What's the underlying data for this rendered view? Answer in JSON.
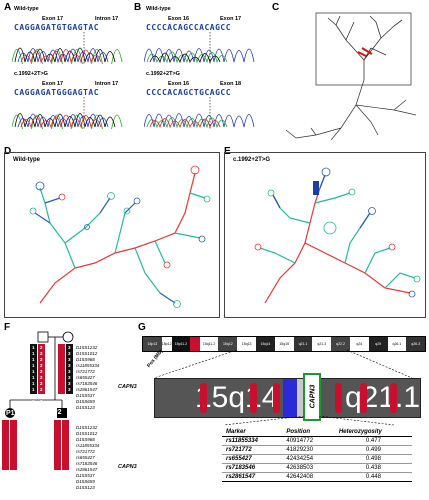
{
  "panels": {
    "a": "A",
    "b": "B",
    "c": "C",
    "d": "D",
    "e": "E",
    "f": "F",
    "g": "G"
  },
  "panel_a": {
    "wt_label": "Wild-type",
    "wt_exon": "Exon 17",
    "wt_intron": "Intron 17",
    "wt_seq": "CAGGAGATGTGAGTAC",
    "mut_label": "c.1992+2T>G",
    "mut_exon": "Exon 17",
    "mut_intron": "Intron 17",
    "mut_seq": "CAGGAGATGGGAGTAC"
  },
  "panel_b": {
    "wt_label": "Wild-type",
    "wt_left": "Exon 16",
    "wt_right": "Exon 17",
    "wt_seq": "CCCCACAGCCACAGCC",
    "mut_label": "c.1992+2T>G",
    "mut_left": "Exon 16",
    "mut_right": "Exon 18",
    "mut_seq": "CCCCACAGCTGCAGCC"
  },
  "panel_d": {
    "label": "Wild-type"
  },
  "panel_e": {
    "label": "c.1992+2T>G"
  },
  "panel_f": {
    "p1": "P1",
    "p2": "P2",
    "markers": [
      "D15S1232",
      "D15S1012",
      "D15S968",
      "rs11855334",
      "rs721772",
      "rs655427",
      "rs7183546",
      "rs2861547",
      "D15S537",
      "D15S659",
      "D15S123"
    ],
    "capn3": "CAPN3",
    "hap_left": [
      "1",
      "1",
      "1",
      "1",
      "1",
      "1",
      "1",
      "1",
      "1",
      "1",
      "1"
    ],
    "hap_mid": [
      "2",
      "2",
      "2",
      "2",
      "2",
      "2",
      "2",
      "2",
      "2",
      "2",
      "2"
    ],
    "hap_right": [
      "3",
      "3",
      "3",
      "3",
      "3",
      "3",
      "3",
      "3",
      "3",
      "3",
      "3"
    ]
  },
  "panel_g": {
    "pos_label": "Pos (Mb)",
    "band_left": "15q14",
    "band_right": "q21.1",
    "gene": "CAPN3",
    "ideo_bands": [
      "15p13",
      "15p12",
      "15p11.2",
      "15q11.2",
      "15q12",
      "15q13",
      "15q14",
      "15q15",
      "q21.1",
      "q21.3",
      "q22.2",
      "q24",
      "q25",
      "q26.1",
      "q26.3"
    ],
    "table_headers": [
      "Marker",
      "Position",
      "Heterozygosity"
    ],
    "rows": [
      {
        "marker": "rs11855334",
        "position": "40914772",
        "het": "0.477"
      },
      {
        "marker": "rs721772",
        "position": "41829230",
        "het": "0.499"
      },
      {
        "marker": "rs655427",
        "position": "42434254",
        "het": "0.498"
      },
      {
        "marker": "rs7183546",
        "position": "42638503",
        "het": "0.438"
      },
      {
        "marker": "rs2861547",
        "position": "42642408",
        "het": "0.448"
      }
    ]
  }
}
